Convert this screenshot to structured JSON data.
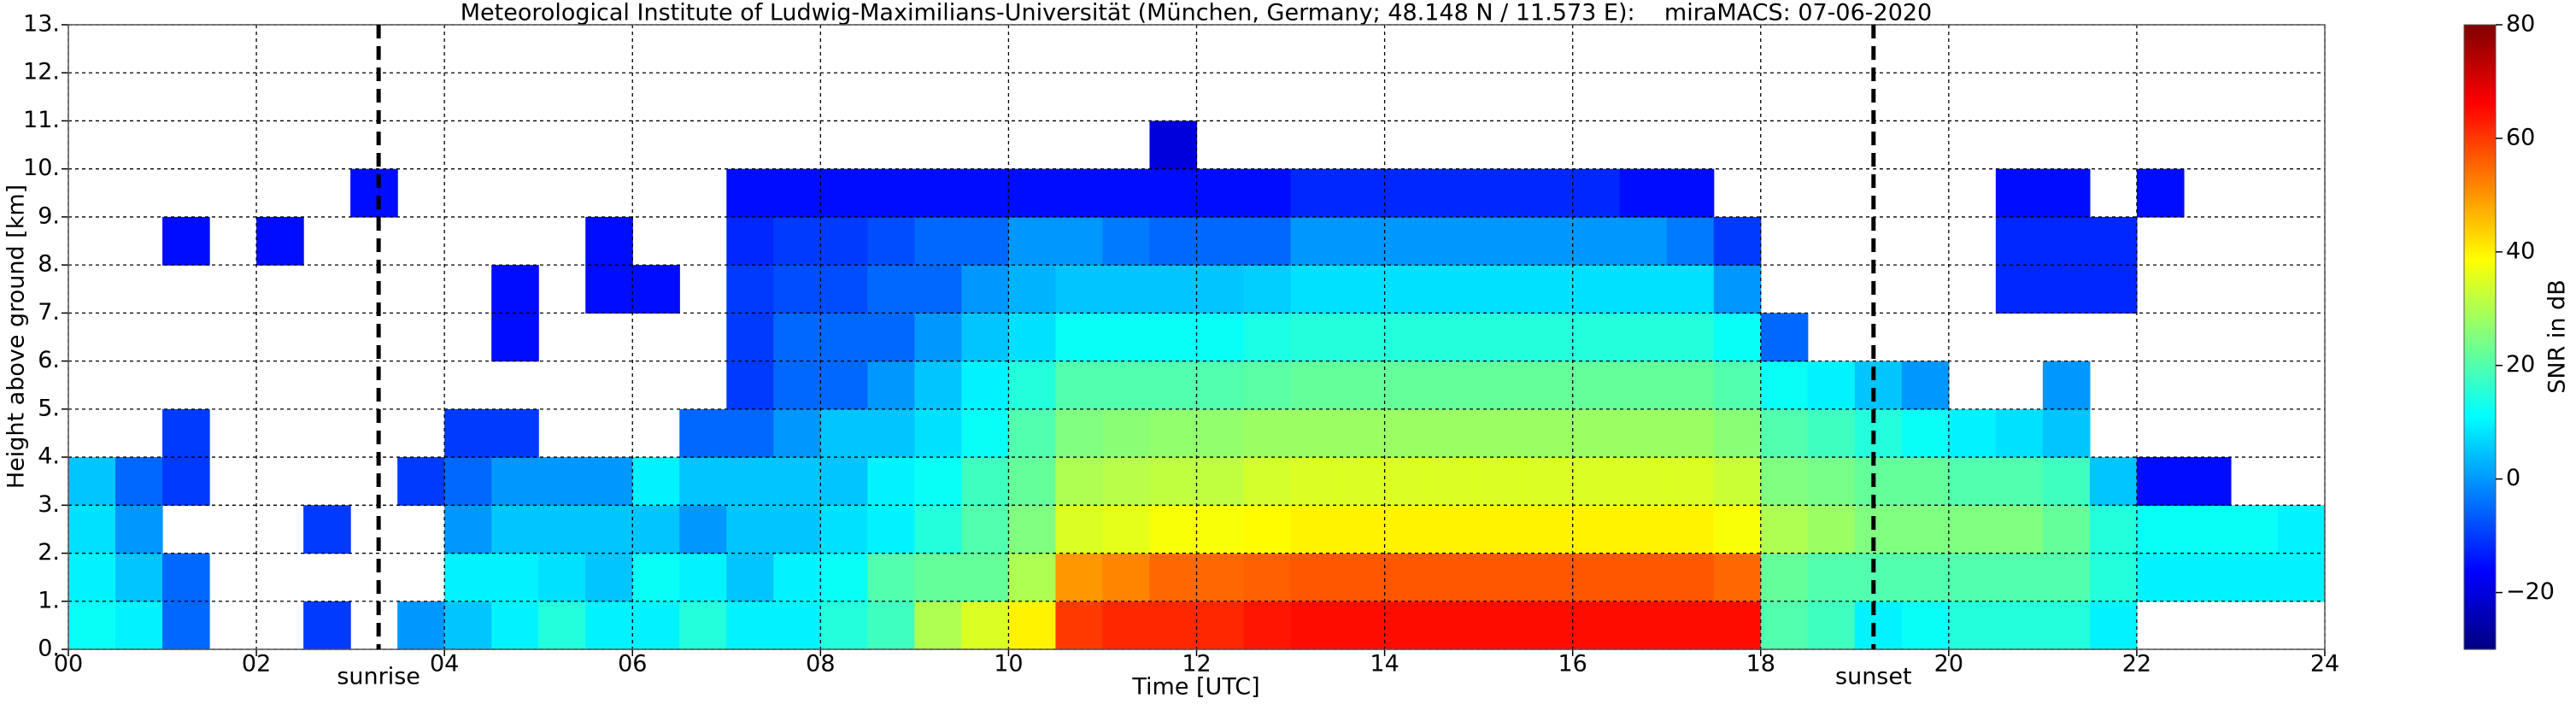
{
  "chart_data": {
    "type": "heatmap",
    "title": "Meteorological Institute of Ludwig-Maximilians-Universität (München, Germany; 48.148 N / 11.573 E):    miraMACS: 07-06-2020",
    "xlabel": "Time [UTC]",
    "ylabel": "Height above ground [km]",
    "colorbar_label": "SNR in dB",
    "xlim": [
      0,
      24
    ],
    "ylim": [
      0,
      13
    ],
    "clim": [
      -30,
      80
    ],
    "grid": true,
    "xticks": [
      {
        "value": 0,
        "label": "00"
      },
      {
        "value": 2,
        "label": "02"
      },
      {
        "value": 4,
        "label": "04"
      },
      {
        "value": 6,
        "label": "06"
      },
      {
        "value": 8,
        "label": "08"
      },
      10,
      12,
      14,
      16,
      18,
      20,
      22,
      24
    ],
    "yticks": [
      {
        "value": 0,
        "label": "0."
      },
      {
        "value": 1,
        "label": "1."
      },
      {
        "value": 2,
        "label": "2."
      },
      {
        "value": 3,
        "label": "3."
      },
      {
        "value": 4,
        "label": "4."
      },
      {
        "value": 5,
        "label": "5."
      },
      {
        "value": 6,
        "label": "6."
      },
      {
        "value": 7,
        "label": "7."
      },
      {
        "value": 8,
        "label": "8."
      },
      {
        "value": 9,
        "label": "9."
      },
      {
        "value": 10,
        "label": "10."
      },
      {
        "value": 11,
        "label": "11."
      },
      {
        "value": 12,
        "label": "12."
      },
      {
        "value": 13,
        "label": "13."
      }
    ],
    "cticks": [
      {
        "value": -20,
        "label": "−20"
      },
      0,
      20,
      40,
      60,
      80
    ],
    "annotations": [
      {
        "text": "sunrise",
        "x": 3.3
      },
      {
        "text": "sunset",
        "x": 19.2
      }
    ],
    "x_bins": [
      0,
      0.5,
      1,
      1.5,
      2,
      2.5,
      3,
      3.5,
      4,
      4.5,
      5,
      5.5,
      6,
      6.5,
      7,
      7.5,
      8,
      8.5,
      9,
      9.5,
      10,
      10.5,
      11,
      11.5,
      12,
      12.5,
      13,
      13.5,
      14,
      14.5,
      15,
      15.5,
      16,
      16.5,
      17,
      17.5,
      18,
      18.5,
      19,
      19.5,
      20,
      20.5,
      21,
      21.5,
      22,
      22.5,
      23,
      23.5,
      24
    ],
    "y_bins": [
      0,
      1,
      2,
      3,
      4,
      5,
      6,
      7,
      8,
      9,
      10,
      11
    ],
    "z": [
      [
        12,
        10,
        -5,
        null,
        null,
        -10,
        null,
        0,
        5,
        10,
        15,
        10,
        10,
        15,
        10,
        10,
        15,
        18,
        30,
        35,
        40,
        60,
        62,
        62,
        62,
        64,
        65,
        65,
        65,
        65,
        65,
        65,
        65,
        65,
        65,
        65,
        20,
        18,
        10,
        12,
        15,
        15,
        15,
        10,
        null,
        null,
        null,
        null
      ],
      [
        10,
        5,
        -5,
        null,
        null,
        null,
        null,
        null,
        10,
        10,
        8,
        5,
        12,
        10,
        5,
        10,
        12,
        20,
        22,
        22,
        30,
        50,
        52,
        55,
        55,
        56,
        57,
        57,
        57,
        57,
        57,
        57,
        57,
        57,
        57,
        55,
        22,
        20,
        20,
        20,
        20,
        20,
        20,
        15,
        10,
        10,
        10,
        10
      ],
      [
        8,
        0,
        null,
        null,
        null,
        -10,
        null,
        null,
        0,
        5,
        5,
        5,
        5,
        0,
        5,
        5,
        8,
        10,
        15,
        20,
        25,
        35,
        36,
        38,
        38,
        39,
        40,
        40,
        40,
        40,
        40,
        40,
        40,
        40,
        40,
        38,
        30,
        28,
        25,
        25,
        25,
        25,
        22,
        15,
        12,
        12,
        12,
        10
      ],
      [
        5,
        -5,
        -10,
        null,
        null,
        null,
        null,
        -10,
        -5,
        0,
        0,
        0,
        10,
        5,
        5,
        5,
        5,
        10,
        12,
        18,
        22,
        30,
        31,
        32,
        32,
        34,
        35,
        35,
        35,
        35,
        35,
        35,
        35,
        35,
        35,
        33,
        25,
        24,
        22,
        22,
        20,
        20,
        18,
        5,
        -15,
        -15,
        null,
        null
      ],
      [
        null,
        null,
        -10,
        null,
        null,
        null,
        null,
        null,
        -10,
        -10,
        null,
        null,
        null,
        -5,
        -5,
        0,
        5,
        5,
        8,
        12,
        20,
        25,
        26,
        27,
        27,
        28,
        28,
        28,
        28,
        28,
        28,
        28,
        28,
        28,
        28,
        26,
        20,
        18,
        15,
        12,
        10,
        8,
        5,
        null,
        null,
        null,
        null,
        null
      ],
      [
        null,
        null,
        null,
        null,
        null,
        null,
        null,
        null,
        null,
        null,
        null,
        null,
        null,
        null,
        -10,
        -5,
        -5,
        0,
        5,
        10,
        15,
        20,
        20,
        20,
        20,
        21,
        22,
        22,
        22,
        22,
        22,
        22,
        22,
        22,
        22,
        20,
        12,
        10,
        5,
        0,
        null,
        null,
        0,
        null,
        null,
        null,
        null,
        null
      ],
      [
        null,
        null,
        null,
        null,
        null,
        null,
        null,
        null,
        null,
        -15,
        null,
        null,
        null,
        null,
        -10,
        -5,
        -5,
        -5,
        0,
        5,
        8,
        12,
        12,
        12,
        12,
        14,
        15,
        15,
        15,
        15,
        15,
        15,
        15,
        15,
        15,
        12,
        -5,
        null,
        null,
        null,
        null,
        null,
        null,
        null,
        null,
        null,
        null,
        null
      ],
      [
        null,
        null,
        null,
        null,
        null,
        null,
        null,
        null,
        null,
        -15,
        null,
        -15,
        -15,
        null,
        -10,
        -8,
        -8,
        -5,
        -5,
        0,
        3,
        5,
        5,
        5,
        5,
        6,
        8,
        8,
        8,
        8,
        8,
        8,
        8,
        8,
        8,
        0,
        null,
        null,
        null,
        null,
        null,
        -12,
        -12,
        -12,
        null,
        null,
        null,
        null
      ],
      [
        null,
        null,
        -15,
        null,
        -15,
        null,
        null,
        null,
        null,
        null,
        null,
        -15,
        null,
        null,
        -12,
        -10,
        -10,
        -8,
        -5,
        -5,
        0,
        0,
        -3,
        -5,
        -5,
        -5,
        0,
        0,
        0,
        0,
        0,
        0,
        0,
        0,
        -3,
        -10,
        null,
        null,
        null,
        null,
        null,
        -12,
        -12,
        -12,
        null,
        null,
        null,
        null
      ],
      [
        null,
        null,
        null,
        null,
        null,
        null,
        -15,
        null,
        null,
        null,
        null,
        null,
        null,
        null,
        -15,
        -15,
        -15,
        -15,
        -15,
        -15,
        -15,
        -15,
        -15,
        -15,
        -15,
        -15,
        -12,
        -12,
        -12,
        -12,
        -12,
        -12,
        -12,
        -15,
        -15,
        null,
        null,
        null,
        null,
        null,
        null,
        -15,
        -15,
        null,
        -15,
        null,
        null,
        null
      ],
      [
        null,
        null,
        null,
        null,
        null,
        null,
        null,
        null,
        null,
        null,
        null,
        null,
        null,
        null,
        null,
        null,
        null,
        null,
        null,
        null,
        null,
        null,
        null,
        -20,
        null,
        null,
        null,
        null,
        null,
        null,
        null,
        null,
        null,
        null,
        null,
        null,
        null,
        null,
        null,
        null,
        null,
        null,
        null,
        null,
        null,
        null,
        null,
        null
      ]
    ]
  }
}
